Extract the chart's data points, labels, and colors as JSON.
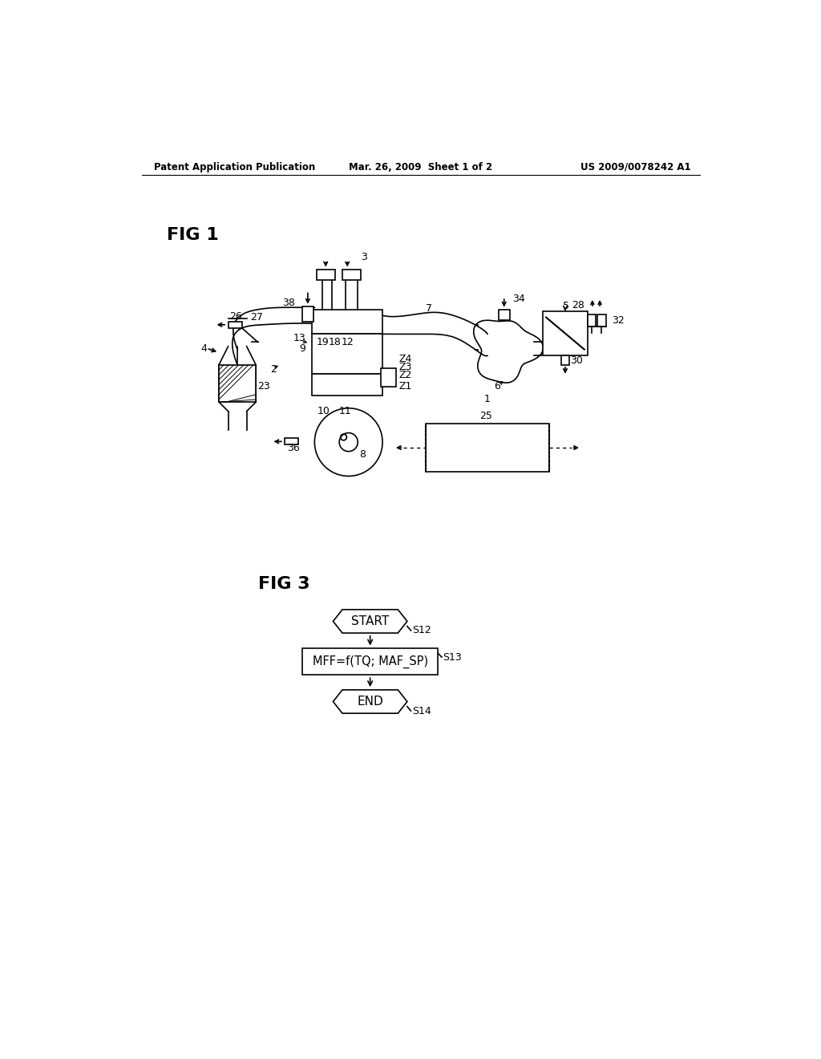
{
  "bg_color": "#ffffff",
  "header_left": "Patent Application Publication",
  "header_mid": "Mar. 26, 2009  Sheet 1 of 2",
  "header_right": "US 2009/0078242 A1",
  "fig1_label": "FIG 1",
  "fig3_label": "FIG 3",
  "flowchart": {
    "start_label": "START",
    "start_step": "S12",
    "process_label": "MFF=f(TQ; MAF_SP)",
    "process_step": "S13",
    "end_label": "END",
    "end_step": "S14"
  }
}
